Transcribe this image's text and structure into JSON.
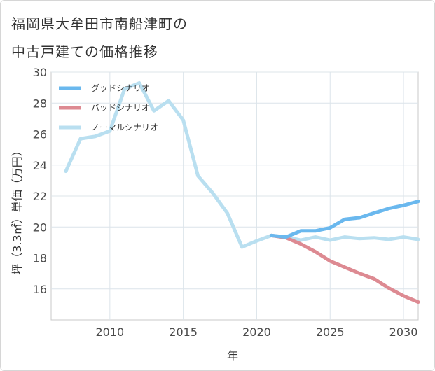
{
  "title_line1": "福岡県大牟田市南船津町の",
  "title_line2": "中古戸建ての価格推移",
  "chart_data": {
    "type": "line",
    "xlabel": "年",
    "ylabel": "坪（3.3㎡）単価（万円）",
    "xlim": [
      2006,
      2031
    ],
    "ylim": [
      14,
      30
    ],
    "xticks": [
      2010,
      2015,
      2020,
      2025,
      2030
    ],
    "yticks": [
      16,
      18,
      20,
      22,
      24,
      26,
      28,
      30
    ],
    "grid": true,
    "legend_position": "top-left",
    "series": [
      {
        "name": "グッドシナリオ",
        "color": "#6ab8ee",
        "x": [
          2021,
          2022,
          2023,
          2024,
          2025,
          2026,
          2027,
          2028,
          2029,
          2030,
          2031
        ],
        "values": [
          19.45,
          19.35,
          19.75,
          19.75,
          19.95,
          20.5,
          20.6,
          20.9,
          21.2,
          21.4,
          21.65
        ]
      },
      {
        "name": "バッドシナリオ",
        "color": "#dd8a92",
        "x": [
          2021,
          2022,
          2023,
          2024,
          2025,
          2026,
          2027,
          2028,
          2029,
          2030,
          2031
        ],
        "values": [
          19.45,
          19.3,
          18.9,
          18.4,
          17.8,
          17.4,
          17.0,
          16.65,
          16.05,
          15.55,
          15.15
        ]
      },
      {
        "name": "ノーマルシナリオ",
        "color": "#b9dff0",
        "x": [
          2007,
          2008,
          2009,
          2010,
          2011,
          2012,
          2013,
          2014,
          2015,
          2016,
          2017,
          2018,
          2019,
          2020,
          2021,
          2022,
          2023,
          2024,
          2025,
          2026,
          2027,
          2028,
          2029,
          2030,
          2031
        ],
        "values": [
          23.6,
          25.7,
          25.85,
          26.2,
          28.9,
          29.3,
          27.5,
          28.15,
          26.9,
          23.3,
          22.2,
          20.9,
          18.7,
          19.1,
          19.45,
          19.35,
          19.15,
          19.35,
          19.15,
          19.35,
          19.25,
          19.3,
          19.2,
          19.35,
          19.2
        ]
      }
    ]
  }
}
